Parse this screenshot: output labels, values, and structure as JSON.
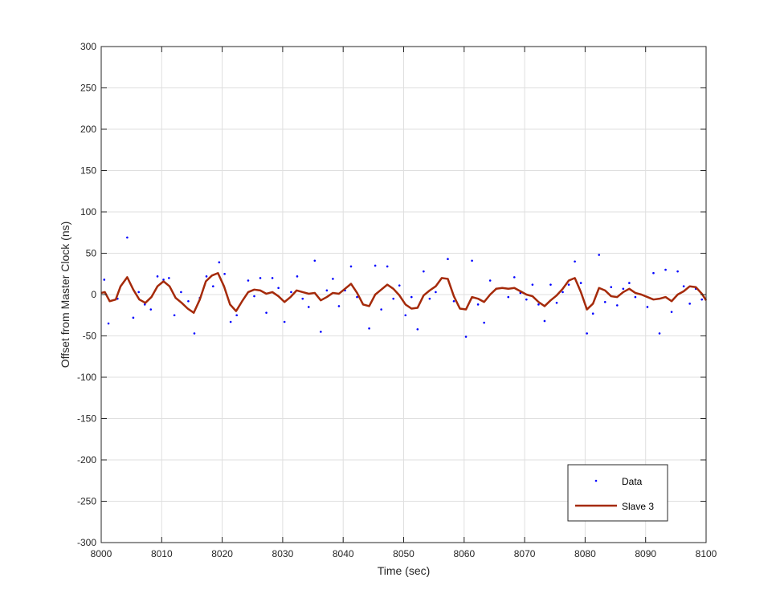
{
  "chart_data": {
    "type": "line",
    "title": "",
    "xlabel": "Time (sec)",
    "ylabel": "Offset from Master Clock (ns)",
    "xlim": [
      8000,
      8100
    ],
    "ylim": [
      -300,
      300
    ],
    "xticks": [
      8000,
      8010,
      8020,
      8030,
      8040,
      8050,
      8060,
      8070,
      8080,
      8090,
      8100
    ],
    "yticks": [
      -300,
      -250,
      -200,
      -150,
      -100,
      -50,
      0,
      50,
      100,
      150,
      200,
      250,
      300
    ],
    "grid": true,
    "legend_position": "bottom-right",
    "series": [
      {
        "name": "Data",
        "style": "points",
        "color": "#0000ff",
        "x": [
          8000.5,
          8001.2,
          8002.7,
          8004.3,
          8005.3,
          8006.2,
          8007.2,
          8008.2,
          8009.3,
          8010.3,
          8011.2,
          8012.1,
          8013.2,
          8014.4,
          8015.4,
          8016.3,
          8017.4,
          8018.5,
          8019.5,
          8020.4,
          8021.4,
          8022.4,
          8024.3,
          8025.3,
          8026.3,
          8027.3,
          8028.3,
          8029.3,
          8030.3,
          8031.4,
          8032.4,
          8033.3,
          8034.3,
          8035.3,
          8036.3,
          8037.3,
          8038.3,
          8039.3,
          8040.3,
          8041.3,
          8042.3,
          8044.3,
          8045.3,
          8046.3,
          8047.3,
          8048.3,
          8049.3,
          8050.3,
          8051.3,
          8052.3,
          8053.3,
          8054.3,
          8055.3,
          8057.3,
          8058.3,
          8060.3,
          8061.3,
          8062.3,
          8063.3,
          8064.3,
          8065.3,
          8066.3,
          8067.3,
          8068.3,
          8069.3,
          8070.3,
          8071.3,
          8072.3,
          8073.3,
          8074.3,
          8075.3,
          8076.3,
          8077.3,
          8078.3,
          8079.3,
          8080.3,
          8081.3,
          8082.3,
          8083.3,
          8084.3,
          8085.3,
          8086.3,
          8087.3,
          8088.3,
          8090.3,
          8091.3,
          8092.3,
          8093.3,
          8094.3,
          8095.3,
          8096.3,
          8097.3,
          8098.3,
          8099.3
        ],
        "y": [
          18,
          -35,
          -5,
          69,
          -28,
          3,
          -12,
          -18,
          22,
          18,
          20,
          -25,
          3,
          -8,
          -47,
          -4,
          22,
          10,
          39,
          25,
          -33,
          -25,
          17,
          -2,
          20,
          -22,
          20,
          8,
          -33,
          3,
          22,
          -5,
          -15,
          41,
          -45,
          5,
          19,
          -14,
          5,
          34,
          -3,
          -41,
          35,
          -18,
          34,
          -5,
          11,
          -25,
          -3,
          -42,
          28,
          -5,
          3,
          43,
          -8,
          -51,
          41,
          -12,
          -34,
          17,
          7,
          8,
          -3,
          21,
          2,
          -6,
          12,
          -12,
          -32,
          12,
          -10,
          3,
          12,
          40,
          14,
          -47,
          -23,
          48,
          -9,
          9,
          -13,
          7,
          14,
          -3,
          -15,
          26,
          -47,
          30,
          -21,
          28,
          10,
          -11,
          7,
          -6
        ]
      },
      {
        "name": "Slave 3",
        "style": "line",
        "color": "#a52a0a",
        "x": [
          8000,
          8000.6,
          8001.4,
          8002.4,
          8003.2,
          8004.3,
          8005.3,
          8006.3,
          8007.3,
          8008.3,
          8009.3,
          8010.3,
          8011.3,
          8012.3,
          8013.3,
          8014.3,
          8015.3,
          8016.3,
          8017.3,
          8018.3,
          8019.3,
          8020.3,
          8021.3,
          8022.3,
          8023.3,
          8024.3,
          8025.3,
          8026.3,
          8027.3,
          8028.3,
          8029.3,
          8030.3,
          8031.3,
          8032.3,
          8033.3,
          8034.3,
          8035.3,
          8036.3,
          8037.3,
          8038.3,
          8039.3,
          8040.3,
          8041.3,
          8042.3,
          8043.3,
          8044.3,
          8045.3,
          8046.3,
          8047.3,
          8048.3,
          8049.3,
          8050.3,
          8051.3,
          8052.3,
          8053.3,
          8054.3,
          8055.3,
          8056.3,
          8057.3,
          8058.3,
          8059.3,
          8060.3,
          8061.3,
          8062.3,
          8063.3,
          8064.3,
          8065.3,
          8066.3,
          8067.3,
          8068.3,
          8069.3,
          8070.3,
          8071.3,
          8072.3,
          8073.3,
          8074.3,
          8075.3,
          8076.3,
          8077.3,
          8078.3,
          8079.3,
          8080.3,
          8081.3,
          8082.3,
          8083.3,
          8084.3,
          8085.3,
          8086.3,
          8087.3,
          8088.3,
          8089.3,
          8090.3,
          8091.3,
          8092.3,
          8093.3,
          8094.3,
          8095.3,
          8096.3,
          8097.3,
          8098.3,
          8099.3,
          8100
        ],
        "y": [
          2,
          3,
          -8,
          -6,
          10,
          21,
          6,
          -6,
          -10,
          -3,
          10,
          16,
          10,
          -4,
          -10,
          -17,
          -22,
          -6,
          16,
          23,
          26,
          10,
          -12,
          -20,
          -8,
          3,
          6,
          5,
          1,
          3,
          -2,
          -9,
          -3,
          5,
          3,
          1,
          2,
          -7,
          -3,
          2,
          1,
          7,
          13,
          2,
          -12,
          -14,
          0,
          6,
          12,
          7,
          -1,
          -12,
          -17,
          -16,
          -1,
          5,
          10,
          20,
          19,
          -2,
          -17,
          -18,
          -3,
          -5,
          -9,
          0,
          7,
          8,
          7,
          8,
          4,
          0,
          -2,
          -9,
          -14,
          -7,
          -1,
          7,
          17,
          20,
          3,
          -18,
          -11,
          8,
          5,
          -2,
          -3,
          3,
          7,
          2,
          0,
          -3,
          -6,
          -5,
          -3,
          -8,
          0,
          4,
          10,
          9,
          1,
          -7
        ]
      }
    ]
  }
}
